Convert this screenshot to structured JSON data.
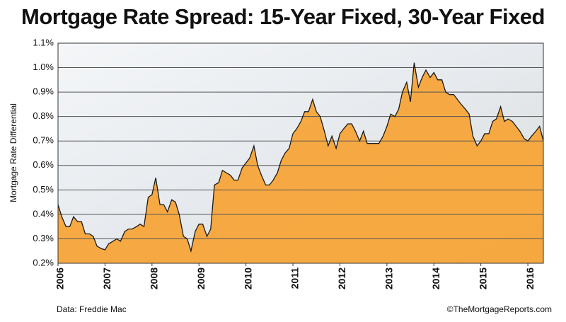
{
  "chart_data": {
    "type": "area",
    "title": "Mortgage Rate Spread: 15-Year Fixed, 30-Year Fixed",
    "y_label": "Mortgage Rate Differential",
    "source": "Data: Freddie Mac",
    "credit": "©TheMortgageReports.com",
    "color": "#f7a333",
    "line_color": "#1a1a1a",
    "grid": true,
    "x": [
      2006,
      2006.08,
      2006.17,
      2006.25,
      2006.33,
      2006.42,
      2006.5,
      2006.58,
      2006.67,
      2006.75,
      2006.83,
      2006.92,
      2007,
      2007.08,
      2007.17,
      2007.25,
      2007.33,
      2007.42,
      2007.5,
      2007.58,
      2007.67,
      2007.75,
      2007.83,
      2007.92,
      2008,
      2008.08,
      2008.17,
      2008.25,
      2008.33,
      2008.42,
      2008.5,
      2008.58,
      2008.67,
      2008.75,
      2008.83,
      2008.92,
      2009,
      2009.08,
      2009.17,
      2009.25,
      2009.33,
      2009.42,
      2009.5,
      2009.58,
      2009.67,
      2009.75,
      2009.83,
      2009.92,
      2010,
      2010.08,
      2010.17,
      2010.25,
      2010.33,
      2010.42,
      2010.5,
      2010.58,
      2010.67,
      2010.75,
      2010.83,
      2010.92,
      2011,
      2011.08,
      2011.17,
      2011.25,
      2011.33,
      2011.42,
      2011.5,
      2011.58,
      2011.67,
      2011.75,
      2011.83,
      2011.92,
      2012,
      2012.08,
      2012.17,
      2012.25,
      2012.33,
      2012.42,
      2012.5,
      2012.58,
      2012.67,
      2012.75,
      2012.83,
      2012.92,
      2013,
      2013.08,
      2013.17,
      2013.25,
      2013.33,
      2013.42,
      2013.5,
      2013.58,
      2013.67,
      2013.75,
      2013.83,
      2013.92,
      2014,
      2014.08,
      2014.17,
      2014.25,
      2014.33,
      2014.42,
      2014.5,
      2014.58,
      2014.67,
      2014.75,
      2014.83,
      2014.92,
      2015,
      2015.08,
      2015.17,
      2015.25,
      2015.33,
      2015.42,
      2015.5,
      2015.58,
      2015.67,
      2015.75,
      2015.83,
      2015.92,
      2016,
      2016.08,
      2016.17,
      2016.25,
      2016.33
    ],
    "values": [
      0.44,
      0.39,
      0.35,
      0.35,
      0.39,
      0.37,
      0.37,
      0.32,
      0.32,
      0.31,
      0.27,
      0.26,
      0.255,
      0.28,
      0.29,
      0.3,
      0.29,
      0.33,
      0.34,
      0.34,
      0.35,
      0.36,
      0.35,
      0.47,
      0.48,
      0.55,
      0.44,
      0.44,
      0.41,
      0.46,
      0.45,
      0.4,
      0.31,
      0.3,
      0.25,
      0.33,
      0.36,
      0.36,
      0.31,
      0.34,
      0.52,
      0.53,
      0.58,
      0.57,
      0.56,
      0.54,
      0.54,
      0.59,
      0.61,
      0.63,
      0.68,
      0.6,
      0.56,
      0.52,
      0.52,
      0.54,
      0.57,
      0.62,
      0.65,
      0.67,
      0.73,
      0.75,
      0.78,
      0.82,
      0.82,
      0.87,
      0.82,
      0.8,
      0.74,
      0.68,
      0.72,
      0.67,
      0.73,
      0.75,
      0.77,
      0.77,
      0.74,
      0.7,
      0.74,
      0.69,
      0.69,
      0.69,
      0.69,
      0.72,
      0.76,
      0.81,
      0.8,
      0.83,
      0.9,
      0.94,
      0.86,
      1.02,
      0.92,
      0.96,
      0.99,
      0.96,
      0.98,
      0.95,
      0.95,
      0.9,
      0.89,
      0.89,
      0.87,
      0.85,
      0.83,
      0.81,
      0.72,
      0.68,
      0.7,
      0.73,
      0.73,
      0.78,
      0.79,
      0.84,
      0.78,
      0.79,
      0.78,
      0.76,
      0.74,
      0.71,
      0.7,
      0.72,
      0.74,
      0.76,
      0.7
    ],
    "xlim": [
      2006,
      2016.33
    ],
    "xticks": [
      2006,
      2007,
      2008,
      2009,
      2010,
      2011,
      2012,
      2013,
      2014,
      2015,
      2016
    ],
    "ylim": [
      0.2,
      1.1
    ],
    "yticks": [
      {
        "value": 0.2,
        "label": "0.2%"
      },
      {
        "value": 0.3,
        "label": "0.3%"
      },
      {
        "value": 0.4,
        "label": "0.4%"
      },
      {
        "value": 0.5,
        "label": "0.5%"
      },
      {
        "value": 0.6,
        "label": "0.6%"
      },
      {
        "value": 0.7,
        "label": "0.7%"
      },
      {
        "value": 0.8,
        "label": "0.8%"
      },
      {
        "value": 0.9,
        "label": "0.9%"
      },
      {
        "value": 1.0,
        "label": "1.0%"
      },
      {
        "value": 1.1,
        "label": "1.1%"
      }
    ]
  }
}
